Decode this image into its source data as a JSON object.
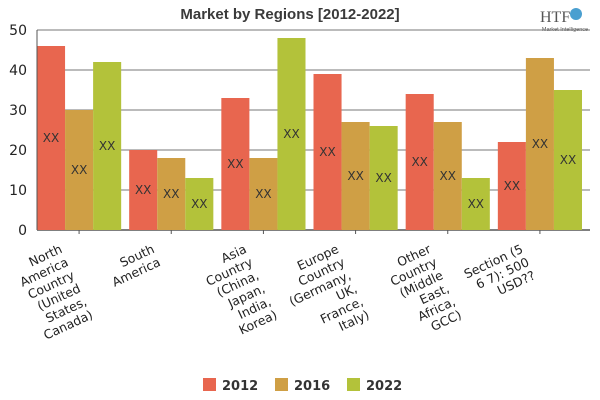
{
  "chart_data": {
    "type": "bar",
    "title": "Market by Regions [2012-2022]",
    "categories": [
      [
        "North",
        "America",
        "Country",
        "(United",
        "States,",
        "Canada)"
      ],
      [
        "South",
        "America"
      ],
      [
        "Asia",
        "Country",
        "(China,",
        "Japan,",
        "India,",
        "Korea)"
      ],
      [
        "Europe",
        "Country",
        "(Germany,",
        "UK,",
        "France,",
        "Italy)"
      ],
      [
        "Other",
        "Country",
        "(Middle",
        "East,",
        "Africa,",
        "GCC)"
      ],
      [
        "Section (5",
        "6 7): 500",
        "USD??"
      ]
    ],
    "series": [
      {
        "name": "2012",
        "color": "#e8664f",
        "values": [
          46,
          20,
          33,
          39,
          34,
          22
        ]
      },
      {
        "name": "2016",
        "color": "#cf9f45",
        "values": [
          30,
          18,
          18,
          27,
          27,
          43
        ]
      },
      {
        "name": "2022",
        "color": "#b3c23a",
        "values": [
          42,
          13,
          48,
          26,
          13,
          35
        ]
      }
    ],
    "data_label": "XX",
    "ylim": [
      0,
      50
    ],
    "yticks": [
      0,
      10,
      20,
      30,
      40,
      50
    ],
    "grid": true,
    "legend": "bottom",
    "xlabel": "",
    "ylabel": ""
  },
  "logo": {
    "text": "HTF",
    "subtext": "Market Intelligence"
  }
}
